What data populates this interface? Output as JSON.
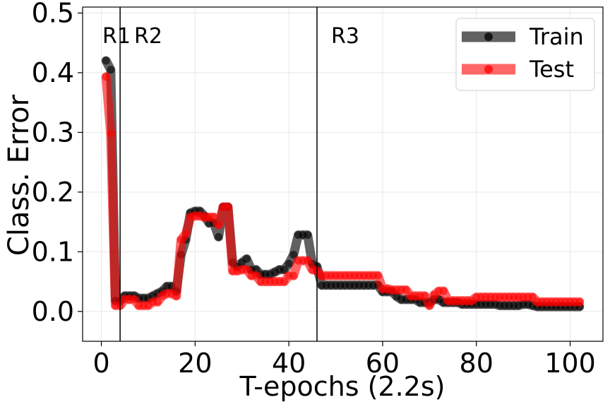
{
  "chart_data": {
    "type": "line",
    "title": "",
    "xlabel": "T-epochs (2.2s)",
    "ylabel": "Class. Error",
    "xlim": [
      -4,
      107
    ],
    "ylim": [
      -0.05,
      0.51
    ],
    "xticks": [
      "0",
      "20",
      "40",
      "60",
      "80",
      "100"
    ],
    "yticks": [
      "0.0",
      "0.1",
      "0.2",
      "0.3",
      "0.4",
      "0.5"
    ],
    "grid": true,
    "legend": "top-right",
    "regions": [
      {
        "label": "R1",
        "x": 4
      },
      {
        "label": "R2",
        "x": 4
      },
      {
        "label": "R3",
        "x": 46
      }
    ],
    "series": [
      {
        "name": "Train",
        "color": "#000000",
        "values_x": [
          1,
          2,
          3,
          4,
          5,
          6,
          7,
          8,
          9,
          10,
          11,
          12,
          13,
          14,
          15,
          16,
          17,
          18,
          19,
          20,
          21,
          22,
          23,
          24,
          25,
          26,
          27,
          28,
          29,
          30,
          31,
          32,
          33,
          34,
          35,
          36,
          37,
          38,
          39,
          40,
          41,
          42,
          43,
          44,
          45,
          46,
          47,
          48,
          49,
          50,
          51,
          52,
          53,
          54,
          55,
          56,
          57,
          58,
          59,
          60,
          61,
          62,
          63,
          64,
          65,
          66,
          67,
          68,
          69,
          70,
          71,
          72,
          73,
          74,
          75,
          76,
          77,
          78,
          79,
          80,
          81,
          82,
          83,
          84,
          85,
          86,
          87,
          88,
          89,
          90,
          91,
          92,
          93,
          94,
          95,
          96,
          97,
          98,
          99,
          100,
          101,
          102
        ],
        "values": [
          0.42,
          0.405,
          0.018,
          0.018,
          0.026,
          0.026,
          0.026,
          0.022,
          0.022,
          0.022,
          0.026,
          0.03,
          0.034,
          0.042,
          0.042,
          0.034,
          0.095,
          0.12,
          0.165,
          0.168,
          0.168,
          0.16,
          0.148,
          0.148,
          0.125,
          0.175,
          0.175,
          0.082,
          0.075,
          0.082,
          0.088,
          0.07,
          0.07,
          0.062,
          0.062,
          0.062,
          0.066,
          0.07,
          0.07,
          0.08,
          0.095,
          0.128,
          0.128,
          0.128,
          0.08,
          0.075,
          0.044,
          0.044,
          0.044,
          0.044,
          0.044,
          0.044,
          0.044,
          0.044,
          0.044,
          0.044,
          0.044,
          0.044,
          0.044,
          0.033,
          0.033,
          0.033,
          0.025,
          0.02,
          0.02,
          0.02,
          0.02,
          0.015,
          0.015,
          0.015,
          0.02,
          0.02,
          0.015,
          0.015,
          0.015,
          0.015,
          0.012,
          0.012,
          0.012,
          0.012,
          0.012,
          0.012,
          0.012,
          0.012,
          0.01,
          0.01,
          0.01,
          0.01,
          0.01,
          0.012,
          0.012,
          0.01,
          0.008,
          0.008,
          0.008,
          0.008,
          0.008,
          0.008,
          0.008,
          0.008,
          0.008,
          0.008
        ]
      },
      {
        "name": "Test",
        "color": "#ff0000",
        "values_x": [
          1,
          2,
          3,
          4,
          5,
          6,
          7,
          8,
          9,
          10,
          11,
          12,
          13,
          14,
          15,
          16,
          17,
          18,
          19,
          20,
          21,
          22,
          23,
          24,
          25,
          26,
          27,
          28,
          29,
          30,
          31,
          32,
          33,
          34,
          35,
          36,
          37,
          38,
          39,
          40,
          41,
          42,
          43,
          44,
          45,
          46,
          47,
          48,
          49,
          50,
          51,
          52,
          53,
          54,
          55,
          56,
          57,
          58,
          59,
          60,
          61,
          62,
          63,
          64,
          65,
          66,
          67,
          68,
          69,
          70,
          71,
          72,
          73,
          74,
          75,
          76,
          77,
          78,
          79,
          80,
          81,
          82,
          83,
          84,
          85,
          86,
          87,
          88,
          89,
          90,
          91,
          92,
          93,
          94,
          95,
          96,
          97,
          98,
          99,
          100,
          101,
          102
        ],
        "values": [
          0.393,
          0.298,
          0.01,
          0.01,
          0.02,
          0.02,
          0.02,
          0.01,
          0.01,
          0.01,
          0.016,
          0.016,
          0.026,
          0.03,
          0.03,
          0.026,
          0.12,
          0.13,
          0.158,
          0.16,
          0.16,
          0.158,
          0.158,
          0.158,
          0.145,
          0.175,
          0.175,
          0.068,
          0.068,
          0.07,
          0.07,
          0.06,
          0.06,
          0.05,
          0.05,
          0.05,
          0.05,
          0.05,
          0.05,
          0.06,
          0.06,
          0.085,
          0.085,
          0.085,
          0.07,
          0.068,
          0.06,
          0.06,
          0.06,
          0.06,
          0.06,
          0.06,
          0.06,
          0.06,
          0.06,
          0.06,
          0.06,
          0.06,
          0.06,
          0.038,
          0.038,
          0.036,
          0.036,
          0.036,
          0.036,
          0.026,
          0.026,
          0.026,
          0.026,
          0.01,
          0.028,
          0.034,
          0.034,
          0.018,
          0.018,
          0.018,
          0.018,
          0.018,
          0.018,
          0.024,
          0.024,
          0.024,
          0.024,
          0.024,
          0.024,
          0.024,
          0.024,
          0.024,
          0.024,
          0.024,
          0.024,
          0.024,
          0.016,
          0.016,
          0.016,
          0.016,
          0.016,
          0.016,
          0.016,
          0.016,
          0.016,
          0.016
        ]
      }
    ]
  }
}
